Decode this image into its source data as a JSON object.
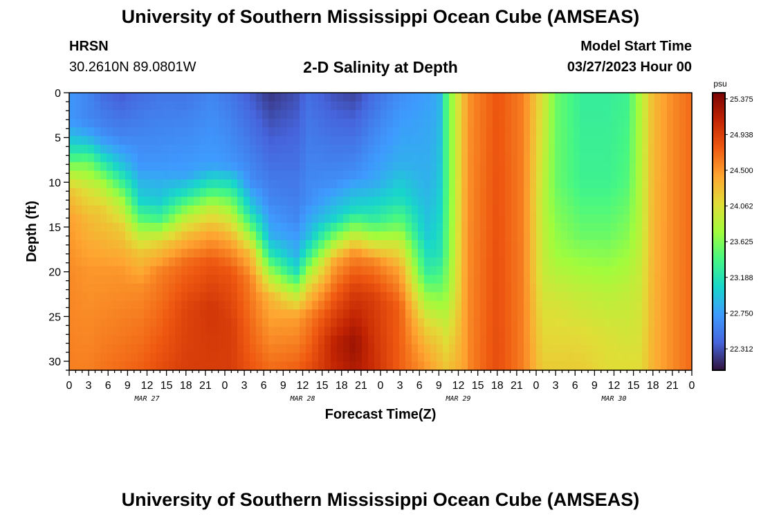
{
  "header": {
    "title": "University of Southern Mississippi Ocean Cube (AMSEAS)",
    "station": "HRSN",
    "coords": "30.2610N  89.0801W",
    "subtitle": "2-D Salinity at Depth",
    "model_start_label": "Model Start Time",
    "model_start_value": "03/27/2023 Hour 00"
  },
  "footer": {
    "title": "University of Southern Mississippi Ocean Cube (AMSEAS)"
  },
  "chart_data": {
    "type": "heatmap",
    "title": "2-D Salinity at Depth",
    "xlabel": "Forecast Time(Z)",
    "ylabel": "Depth (ft)",
    "units": "psu",
    "x_hours_range": [
      0,
      96
    ],
    "y_range": [
      0,
      31
    ],
    "y_ticks": [
      0,
      5,
      10,
      15,
      20,
      25,
      30
    ],
    "x_tick_labels": [
      "0",
      "3",
      "6",
      "9",
      "12",
      "15",
      "18",
      "21",
      "0",
      "3",
      "6",
      "9",
      "12",
      "15",
      "18",
      "21",
      "0",
      "3",
      "6",
      "9",
      "12",
      "15",
      "18",
      "21",
      "0",
      "3",
      "6",
      "9",
      "12",
      "15",
      "18",
      "21",
      "0"
    ],
    "date_labels": [
      {
        "label": "MAR 27",
        "hour": 12
      },
      {
        "label": "MAR 28",
        "hour": 36
      },
      {
        "label": "MAR 29",
        "hour": 60
      },
      {
        "label": "MAR 30",
        "hour": 84
      }
    ],
    "colorbar_range": [
      22.05,
      25.45
    ],
    "colorbar_ticks": [
      "25.375",
      "24.938",
      "24.500",
      "24.062",
      "23.625",
      "23.188",
      "22.750",
      "22.312"
    ],
    "colorbar_tick_values": [
      25.375,
      24.938,
      24.5,
      24.062,
      23.625,
      23.188,
      22.75,
      22.312
    ],
    "profiles": [
      {
        "hour": 0,
        "values": [
          [
            0,
            22.7
          ],
          [
            3,
            22.7
          ],
          [
            5,
            22.95
          ],
          [
            7,
            23.3
          ],
          [
            9,
            23.85
          ],
          [
            11,
            24.25
          ],
          [
            14,
            24.45
          ],
          [
            20,
            24.55
          ],
          [
            31,
            24.6
          ]
        ]
      },
      {
        "hour": 3,
        "values": [
          [
            0,
            22.6
          ],
          [
            3,
            22.6
          ],
          [
            5,
            22.85
          ],
          [
            6,
            23.1
          ],
          [
            8,
            23.6
          ],
          [
            11,
            24.05
          ],
          [
            14,
            24.3
          ],
          [
            20,
            24.5
          ],
          [
            31,
            24.6
          ]
        ]
      },
      {
        "hour": 5,
        "values": [
          [
            0,
            22.45
          ],
          [
            4,
            22.6
          ],
          [
            6,
            22.85
          ],
          [
            8,
            23.3
          ],
          [
            10,
            23.8
          ],
          [
            13,
            24.2
          ],
          [
            20,
            24.5
          ],
          [
            31,
            24.65
          ]
        ]
      },
      {
        "hour": 8,
        "values": [
          [
            0,
            22.35
          ],
          [
            5,
            22.6
          ],
          [
            8,
            22.95
          ],
          [
            10,
            23.35
          ],
          [
            12,
            23.8
          ],
          [
            15,
            24.2
          ],
          [
            20,
            24.5
          ],
          [
            31,
            24.7
          ]
        ]
      },
      {
        "hour": 11,
        "values": [
          [
            0,
            22.45
          ],
          [
            8,
            22.7
          ],
          [
            12,
            23.05
          ],
          [
            14,
            23.45
          ],
          [
            16,
            23.9
          ],
          [
            18,
            24.25
          ],
          [
            22,
            24.55
          ],
          [
            31,
            24.75
          ]
        ]
      },
      {
        "hour": 14,
        "values": [
          [
            0,
            22.5
          ],
          [
            8,
            22.7
          ],
          [
            12,
            23.0
          ],
          [
            14,
            23.35
          ],
          [
            15.5,
            23.8
          ],
          [
            17,
            24.2
          ],
          [
            20,
            24.6
          ],
          [
            31,
            24.85
          ]
        ]
      },
      {
        "hour": 18,
        "values": [
          [
            0,
            22.5
          ],
          [
            9,
            22.75
          ],
          [
            11,
            23.1
          ],
          [
            12.5,
            23.5
          ],
          [
            14,
            23.9
          ],
          [
            16,
            24.3
          ],
          [
            19,
            24.7
          ],
          [
            24,
            24.9
          ],
          [
            31,
            24.95
          ]
        ]
      },
      {
        "hour": 22,
        "values": [
          [
            0,
            22.6
          ],
          [
            8,
            22.75
          ],
          [
            10,
            23.15
          ],
          [
            11.5,
            23.55
          ],
          [
            13,
            23.95
          ],
          [
            15.5,
            24.4
          ],
          [
            19,
            24.8
          ],
          [
            24,
            25.0
          ],
          [
            31,
            24.95
          ]
        ]
      },
      {
        "hour": 25,
        "values": [
          [
            0,
            22.5
          ],
          [
            8,
            22.7
          ],
          [
            10,
            23.1
          ],
          [
            12,
            23.55
          ],
          [
            14,
            23.95
          ],
          [
            16.5,
            24.4
          ],
          [
            20,
            24.8
          ],
          [
            26,
            24.95
          ],
          [
            31,
            24.95
          ]
        ]
      },
      {
        "hour": 28,
        "values": [
          [
            0,
            22.35
          ],
          [
            10,
            22.65
          ],
          [
            13,
            23.05
          ],
          [
            15,
            23.5
          ],
          [
            16.5,
            23.9
          ],
          [
            18,
            24.3
          ],
          [
            21,
            24.6
          ],
          [
            31,
            24.8
          ]
        ]
      },
      {
        "hour": 31,
        "values": [
          [
            0,
            22.2
          ],
          [
            12,
            22.6
          ],
          [
            16,
            22.85
          ],
          [
            18,
            23.2
          ],
          [
            19.5,
            23.6
          ],
          [
            21,
            23.95
          ],
          [
            23,
            24.35
          ],
          [
            31,
            24.7
          ]
        ]
      },
      {
        "hour": 35,
        "values": [
          [
            0,
            22.3
          ],
          [
            14,
            22.6
          ],
          [
            18,
            22.85
          ],
          [
            20,
            23.15
          ],
          [
            21.5,
            23.6
          ],
          [
            23,
            24.0
          ],
          [
            25,
            24.45
          ],
          [
            31,
            24.75
          ]
        ]
      },
      {
        "hour": 37,
        "values": [
          [
            0,
            22.45
          ],
          [
            12,
            22.65
          ],
          [
            16,
            22.95
          ],
          [
            18,
            23.3
          ],
          [
            20,
            23.8
          ],
          [
            22,
            24.2
          ],
          [
            25,
            24.6
          ],
          [
            31,
            24.85
          ]
        ]
      },
      {
        "hour": 41,
        "values": [
          [
            0,
            22.3
          ],
          [
            10,
            22.65
          ],
          [
            14,
            23.05
          ],
          [
            16,
            23.6
          ],
          [
            17.5,
            24.05
          ],
          [
            19,
            24.45
          ],
          [
            23,
            24.8
          ],
          [
            28,
            25.15
          ],
          [
            31,
            25.1
          ]
        ]
      },
      {
        "hour": 44,
        "values": [
          [
            0,
            22.25
          ],
          [
            9,
            22.65
          ],
          [
            13,
            23.1
          ],
          [
            15,
            23.65
          ],
          [
            16.5,
            24.1
          ],
          [
            18,
            24.55
          ],
          [
            22,
            24.95
          ],
          [
            28,
            25.3
          ],
          [
            31,
            25.2
          ]
        ]
      },
      {
        "hour": 47,
        "values": [
          [
            0,
            22.45
          ],
          [
            10,
            22.8
          ],
          [
            14,
            23.25
          ],
          [
            16,
            23.75
          ],
          [
            17.5,
            24.2
          ],
          [
            19,
            24.6
          ],
          [
            23,
            24.95
          ],
          [
            31,
            25.05
          ]
        ]
      },
      {
        "hour": 51,
        "values": [
          [
            0,
            22.65
          ],
          [
            8,
            22.85
          ],
          [
            12,
            23.15
          ],
          [
            15,
            23.6
          ],
          [
            17,
            24.0
          ],
          [
            20,
            24.45
          ],
          [
            24,
            24.75
          ],
          [
            31,
            24.75
          ]
        ]
      },
      {
        "hour": 55,
        "values": [
          [
            0,
            22.75
          ],
          [
            10,
            22.85
          ],
          [
            16,
            23.0
          ],
          [
            20,
            23.3
          ],
          [
            23,
            23.75
          ],
          [
            26,
            24.15
          ],
          [
            29,
            24.4
          ],
          [
            31,
            24.5
          ]
        ]
      },
      {
        "hour": 57,
        "values": [
          [
            0,
            22.8
          ],
          [
            10,
            22.95
          ],
          [
            18,
            23.15
          ],
          [
            21,
            23.45
          ],
          [
            24,
            23.8
          ],
          [
            27,
            24.15
          ],
          [
            31,
            24.35
          ]
        ]
      },
      {
        "hour": 58,
        "values": [
          [
            0,
            23.35
          ],
          [
            10,
            23.35
          ],
          [
            18,
            23.45
          ],
          [
            22,
            23.65
          ],
          [
            26,
            23.95
          ],
          [
            29,
            24.15
          ],
          [
            31,
            24.25
          ]
        ]
      },
      {
        "hour": 59.5,
        "values": [
          [
            0,
            23.9
          ],
          [
            14,
            23.9
          ],
          [
            22,
            24.0
          ],
          [
            27,
            24.2
          ],
          [
            31,
            24.35
          ]
        ]
      },
      {
        "hour": 61,
        "values": [
          [
            0,
            24.35
          ],
          [
            31,
            24.45
          ]
        ]
      },
      {
        "hour": 62,
        "values": [
          [
            0,
            24.55
          ],
          [
            31,
            24.6
          ]
        ]
      },
      {
        "hour": 66,
        "values": [
          [
            0,
            24.8
          ],
          [
            31,
            24.85
          ]
        ]
      },
      {
        "hour": 70,
        "values": [
          [
            0,
            24.6
          ],
          [
            31,
            24.6
          ]
        ]
      },
      {
        "hour": 73,
        "values": [
          [
            0,
            24.05
          ],
          [
            12,
            23.9
          ],
          [
            20,
            23.95
          ],
          [
            26,
            24.1
          ],
          [
            31,
            24.2
          ]
        ]
      },
      {
        "hour": 75,
        "values": [
          [
            0,
            23.55
          ],
          [
            10,
            23.55
          ],
          [
            18,
            23.75
          ],
          [
            24,
            24.05
          ],
          [
            31,
            24.2
          ]
        ]
      },
      {
        "hour": 79,
        "values": [
          [
            0,
            23.3
          ],
          [
            10,
            23.35
          ],
          [
            16,
            23.55
          ],
          [
            22,
            23.9
          ],
          [
            27,
            24.1
          ],
          [
            31,
            24.2
          ]
        ]
      },
      {
        "hour": 83,
        "values": [
          [
            0,
            23.3
          ],
          [
            10,
            23.35
          ],
          [
            16,
            23.55
          ],
          [
            22,
            23.85
          ],
          [
            27,
            24.05
          ],
          [
            31,
            24.1
          ]
        ]
      },
      {
        "hour": 86,
        "values": [
          [
            0,
            23.35
          ],
          [
            10,
            23.45
          ],
          [
            16,
            23.65
          ],
          [
            22,
            23.9
          ],
          [
            31,
            24.1
          ]
        ]
      },
      {
        "hour": 88,
        "values": [
          [
            0,
            23.8
          ],
          [
            14,
            23.85
          ],
          [
            20,
            23.95
          ],
          [
            31,
            24.1
          ]
        ]
      },
      {
        "hour": 90,
        "values": [
          [
            0,
            24.3
          ],
          [
            31,
            24.35
          ]
        ]
      },
      {
        "hour": 93,
        "values": [
          [
            0,
            24.55
          ],
          [
            31,
            24.55
          ]
        ]
      },
      {
        "hour": 96,
        "values": [
          [
            0,
            24.7
          ],
          [
            31,
            24.7
          ]
        ]
      }
    ]
  }
}
